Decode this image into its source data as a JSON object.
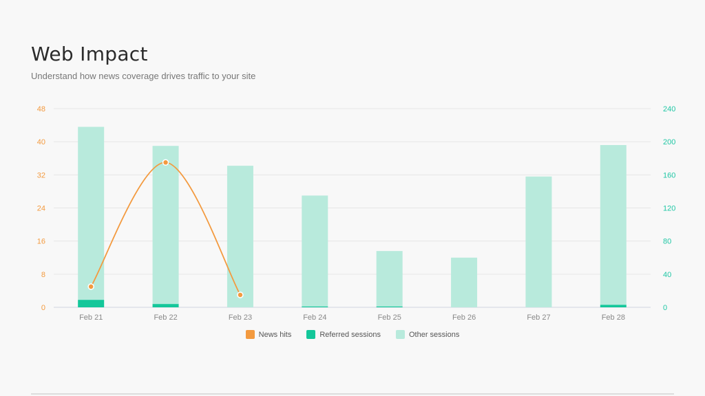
{
  "header": {
    "title": "Web Impact",
    "subtitle": "Understand how news coverage drives traffic to your site"
  },
  "colors": {
    "news": "#f39a3f",
    "referred": "#14c79a",
    "other": "#b8eadc",
    "left_axis": "#f39a3f",
    "right_axis": "#20c7a5",
    "grid": "#e6e6e6"
  },
  "legend": [
    {
      "label": "News hits",
      "color": "#f39a3f"
    },
    {
      "label": "Referred sessions",
      "color": "#14c79a"
    },
    {
      "label": "Other sessions",
      "color": "#b8eadc"
    }
  ],
  "chart_data": {
    "type": "bar",
    "categories": [
      "Feb 21",
      "Feb 22",
      "Feb 23",
      "Feb 24",
      "Feb 25",
      "Feb 26",
      "Feb 27",
      "Feb 28"
    ],
    "left_axis": {
      "ticks": [
        0,
        8,
        16,
        24,
        32,
        40,
        48
      ],
      "ylim": [
        0,
        48
      ]
    },
    "right_axis": {
      "ticks": [
        0,
        40,
        80,
        120,
        160,
        200,
        240
      ],
      "ylim": [
        0,
        240
      ]
    },
    "series": [
      {
        "name": "Referred sessions",
        "type": "stacked-bar",
        "axis": "right",
        "values": [
          9,
          4,
          0,
          1,
          1,
          0,
          0,
          3
        ]
      },
      {
        "name": "Other sessions",
        "type": "stacked-bar",
        "axis": "right",
        "values": [
          209,
          191,
          171,
          134,
          67,
          60,
          158,
          193
        ]
      },
      {
        "name": "News hits",
        "type": "line",
        "axis": "left",
        "values": [
          5,
          35,
          3,
          null,
          null,
          null,
          null,
          null
        ]
      }
    ],
    "grid": true,
    "legend_position": "bottom"
  }
}
